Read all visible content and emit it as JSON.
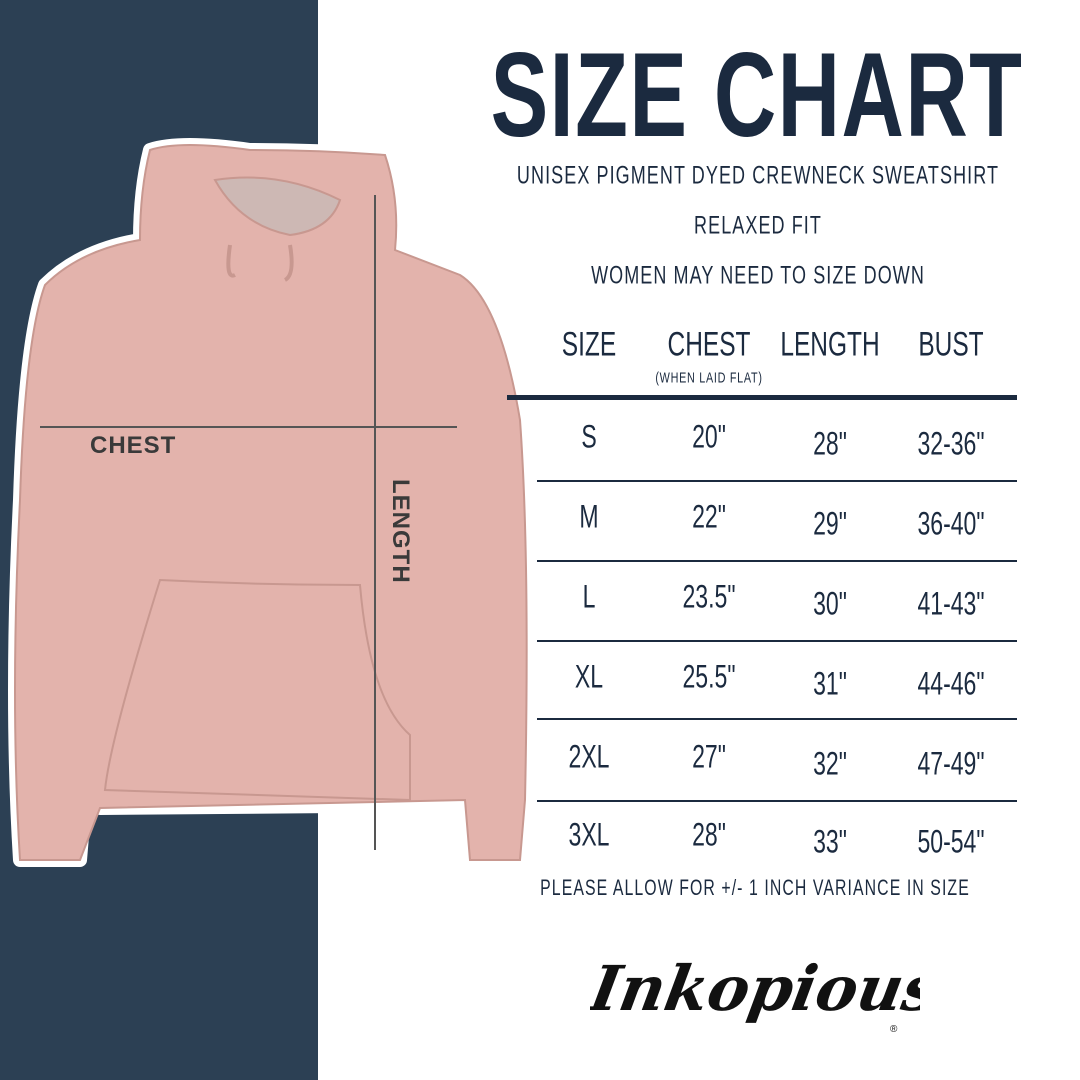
{
  "title": "SIZE CHART",
  "subtitles": [
    "UNISEX PIGMENT DYED CREWNECK SWEATSHIRT",
    "RELAXED FIT",
    "WOMEN MAY NEED TO SIZE DOWN"
  ],
  "table": {
    "headers": [
      "SIZE",
      "CHEST",
      "LENGTH",
      "BUST"
    ],
    "chest_note": "(WHEN LAID FLAT)",
    "rows": [
      [
        "S",
        "20\"",
        "28\"",
        "32-36\""
      ],
      [
        "M",
        "22\"",
        "29\"",
        "36-40\""
      ],
      [
        "L",
        "23.5\"",
        "30\"",
        "41-43\""
      ],
      [
        "XL",
        "25.5\"",
        "31\"",
        "44-46\""
      ],
      [
        "2XL",
        "27\"",
        "32\"",
        "47-49\""
      ],
      [
        "3XL",
        "28\"",
        "33\"",
        "50-54\""
      ]
    ]
  },
  "note": "PLEASE ALLOW FOR +/- 1 INCH VARIANCE IN SIZE",
  "diagram": {
    "chest_label": "CHEST",
    "length_label": "LENGTH"
  },
  "brand": {
    "logo_text": "Inkopious"
  },
  "colors": {
    "navy": "#2c4054",
    "text": "#1b2a3f",
    "garment": "#e3b3ac"
  }
}
